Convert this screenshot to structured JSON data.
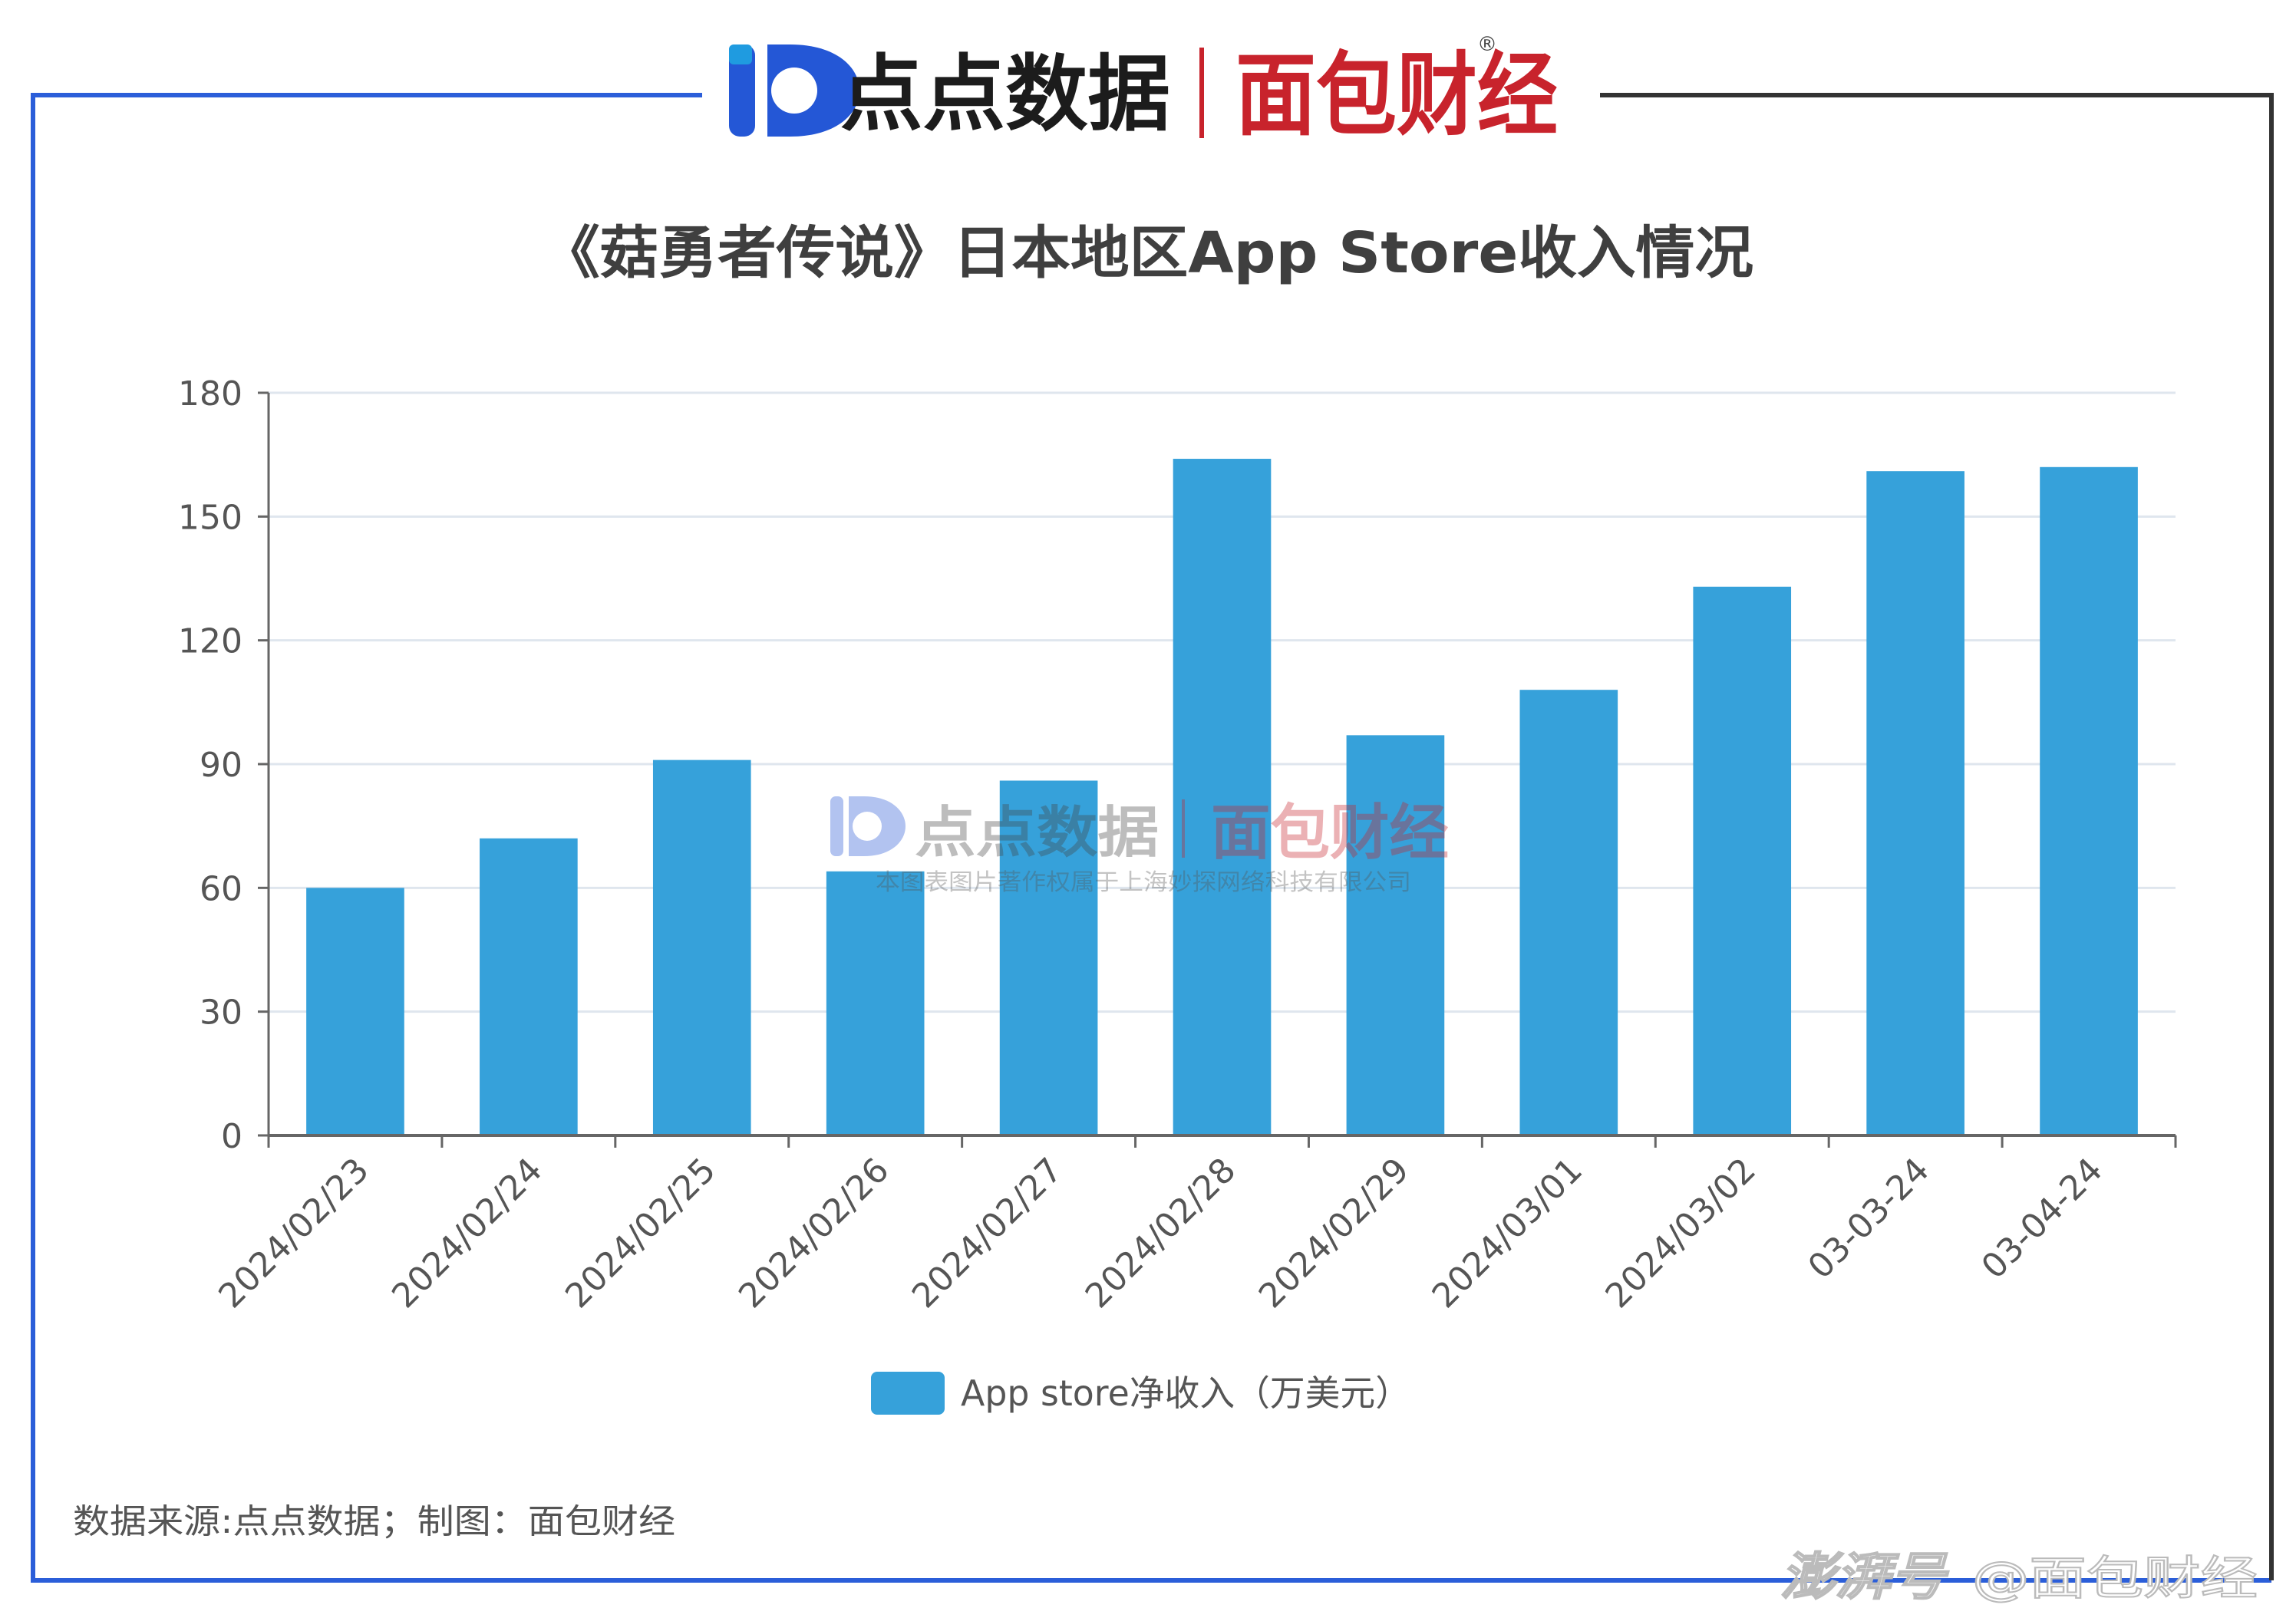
{
  "header": {
    "logo_left_text": "点点数据",
    "logo_right_text": "面包财经",
    "registered_mark": "®"
  },
  "watermark": {
    "logo_left_text": "点点数据",
    "logo_right_text": "面包财经",
    "copyright": "本图表图片著作权属于上海妙探网络科技有限公司"
  },
  "footer": {
    "source": "数据来源:点点数据；制图：面包财经",
    "platform": "澎湃号",
    "author": "@面包财经"
  },
  "colors": {
    "bar": "#36a1da",
    "frame_left": "#2b5ed9",
    "frame_right": "#333333",
    "logo_blue": "#2457d6",
    "logo_red": "#c8232c",
    "axis": "#666666",
    "grid": "#dfe6ee",
    "tick_text": "#555555"
  },
  "chart_data": {
    "type": "bar",
    "title": "《菇勇者传说》日本地区App Store收入情况",
    "categories": [
      "2024/02/23",
      "2024/02/24",
      "2024/02/25",
      "2024/02/26",
      "2024/02/27",
      "2024/02/28",
      "2024/02/29",
      "2024/03/01",
      "2024/03/02",
      "03-03-24",
      "03-04-24"
    ],
    "series": [
      {
        "name": "App store净收入（万美元）",
        "values": [
          60,
          72,
          91,
          64,
          86,
          164,
          97,
          108,
          133,
          161,
          162
        ]
      }
    ],
    "yticks": [
      "0",
      "30",
      "60",
      "90",
      "120",
      "150",
      "180"
    ],
    "ylim": [
      0,
      180
    ],
    "xlabel": "",
    "ylabel": "",
    "grid": true,
    "legend": "bottom-center"
  }
}
